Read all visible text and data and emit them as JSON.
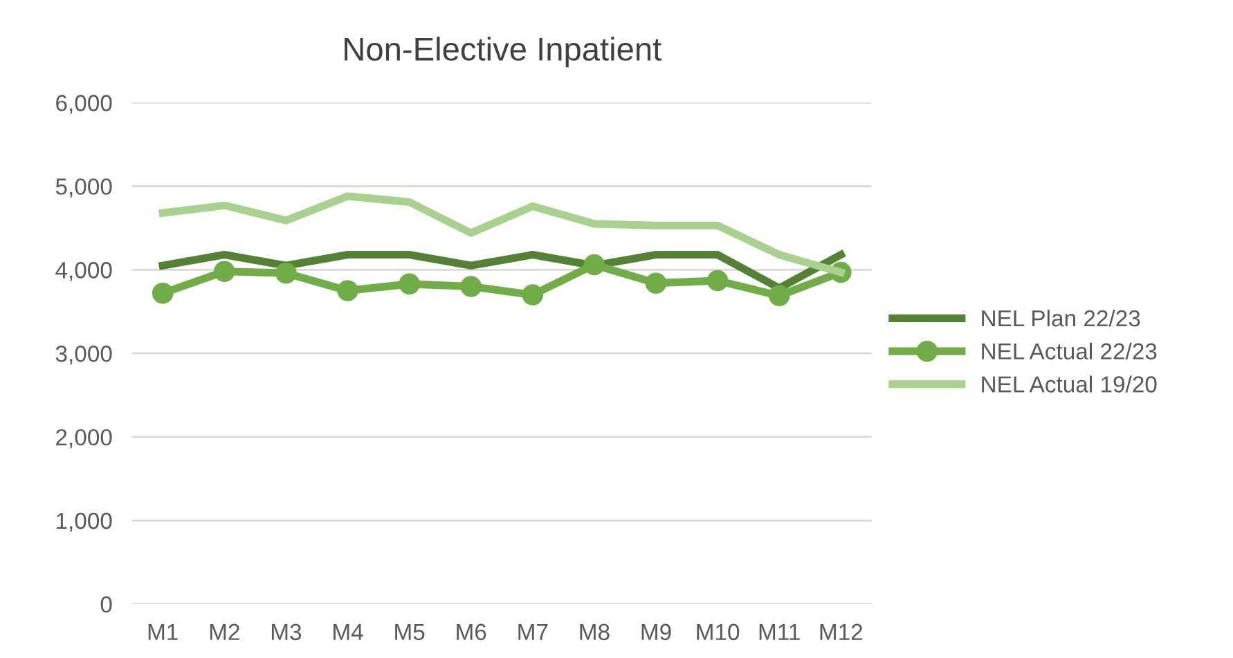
{
  "chart_data": {
    "type": "line",
    "title": "Non-Elective Inpatient",
    "categories": [
      "M1",
      "M2",
      "M3",
      "M4",
      "M5",
      "M6",
      "M7",
      "M8",
      "M9",
      "M10",
      "M11",
      "M12"
    ],
    "series": [
      {
        "name": "NEL Plan 22/23",
        "color": "#548235",
        "marker": "none",
        "values": [
          4050,
          4180,
          4050,
          4180,
          4180,
          4050,
          4180,
          4050,
          4180,
          4180,
          3780,
          4180
        ]
      },
      {
        "name": "NEL Actual 22/23",
        "color": "#70ad47",
        "marker": "circle",
        "values": [
          3720,
          3980,
          3960,
          3750,
          3830,
          3800,
          3700,
          4060,
          3840,
          3870,
          3690,
          3970
        ]
      },
      {
        "name": "NEL Actual 19/20",
        "color": "#a9d18e",
        "marker": "none",
        "values": [
          4680,
          4770,
          4590,
          4880,
          4810,
          4440,
          4760,
          4550,
          4530,
          4530,
          4180,
          3970
        ]
      }
    ],
    "ylim": [
      0,
      6000
    ],
    "yticks": [
      {
        "value": 0,
        "label": "0"
      },
      {
        "value": 1000,
        "label": "1,000"
      },
      {
        "value": 2000,
        "label": "2,000"
      },
      {
        "value": 3000,
        "label": "3,000"
      },
      {
        "value": 4000,
        "label": "4,000"
      },
      {
        "value": 5000,
        "label": "5,000"
      },
      {
        "value": 6000,
        "label": "6,000"
      }
    ],
    "grid": "y",
    "legend": "right"
  }
}
